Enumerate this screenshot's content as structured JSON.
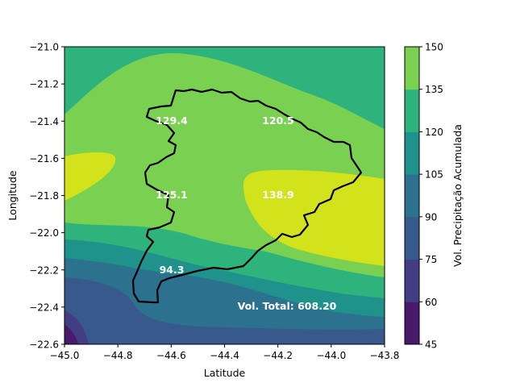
{
  "chart_data": {
    "type": "heatmap",
    "subtype": "filled-contour",
    "xlabel": "Latitude",
    "ylabel": "Longitude",
    "xlim": [
      -45.0,
      -43.8
    ],
    "ylim": [
      -22.6,
      -21.0
    ],
    "xticks": [
      "−45.0",
      "−44.8",
      "−44.6",
      "−44.4",
      "−44.2",
      "−44.0",
      "−43.8"
    ],
    "yticks": [
      "−21.0",
      "−21.2",
      "−21.4",
      "−21.6",
      "−21.8",
      "−22.0",
      "−22.2",
      "−22.4",
      "−22.6"
    ],
    "colorbar": {
      "label": "Vol. Precipitação Acumulada",
      "levels": [
        45,
        60,
        75,
        90,
        105,
        120,
        135,
        150
      ],
      "ticks": [
        "45",
        "60",
        "75",
        "90",
        "105",
        "120",
        "135",
        "150"
      ],
      "colors": [
        "#481a6c",
        "#433d84",
        "#38598c",
        "#2c728e",
        "#20928c",
        "#2eb37c",
        "#7ad151",
        "#d2e21b"
      ]
    },
    "annotations": [
      {
        "x": -44.61,
        "y": -21.4,
        "text": "129.4"
      },
      {
        "x": -44.21,
        "y": -21.4,
        "text": "120.5"
      },
      {
        "x": -44.61,
        "y": -21.8,
        "text": "125.1"
      },
      {
        "x": -44.21,
        "y": -21.8,
        "text": "138.9"
      },
      {
        "x": -44.61,
        "y": -22.2,
        "text": "94.3"
      },
      {
        "x": -44.16,
        "y": -22.4,
        "text": "Vol. Total: 608.20"
      }
    ]
  }
}
